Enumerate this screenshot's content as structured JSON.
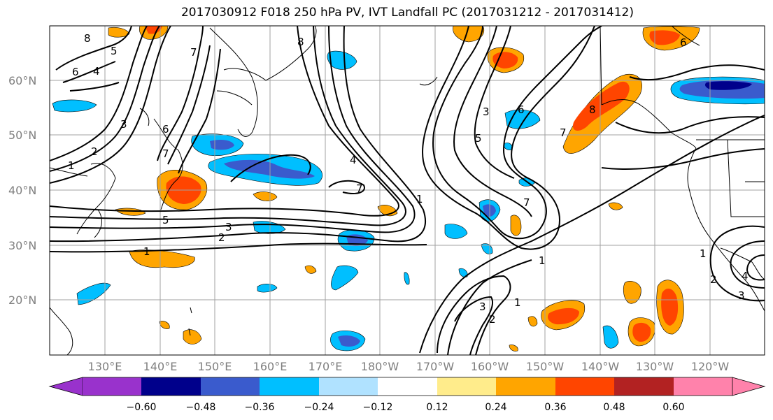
{
  "title": "2017030912 F018 250 hPa PV, IVT Landfall PC (2017031212 - 2017031412)",
  "map": {
    "lat_labels": [
      "60°N",
      "50°N",
      "40°N",
      "30°N",
      "20°N"
    ],
    "lon_labels": [
      "130°E",
      "140°E",
      "150°E",
      "160°E",
      "170°E",
      "180°W",
      "170°W",
      "160°W",
      "150°W",
      "140°W",
      "130°W",
      "120°W"
    ],
    "contour_labels": [
      "8",
      "5",
      "6",
      "4",
      "3",
      "2",
      "1",
      "7",
      "6",
      "7",
      "5",
      "3",
      "2",
      "1",
      "8",
      "4",
      "1",
      "7",
      "3",
      "5",
      "6",
      "8",
      "7",
      "7",
      "1",
      "3",
      "2",
      "1",
      "1",
      "2",
      "3",
      "4",
      "6"
    ]
  },
  "colorbar": {
    "ticks": [
      "−0.60",
      "−0.48",
      "−0.36",
      "−0.24",
      "−0.12",
      "0.12",
      "0.24",
      "0.36",
      "0.48",
      "0.60"
    ],
    "colors": [
      "#9932cc",
      "#00008b",
      "#3a5bcd",
      "#00bfff",
      "#b0e2ff",
      "#ffffff",
      "#ffec8b",
      "#ffa500",
      "#ff4500",
      "#b22222",
      "#ff82ab"
    ]
  },
  "colors": {
    "frame": "#000000",
    "grid": "#a0a0a0",
    "contour": "#000000"
  }
}
